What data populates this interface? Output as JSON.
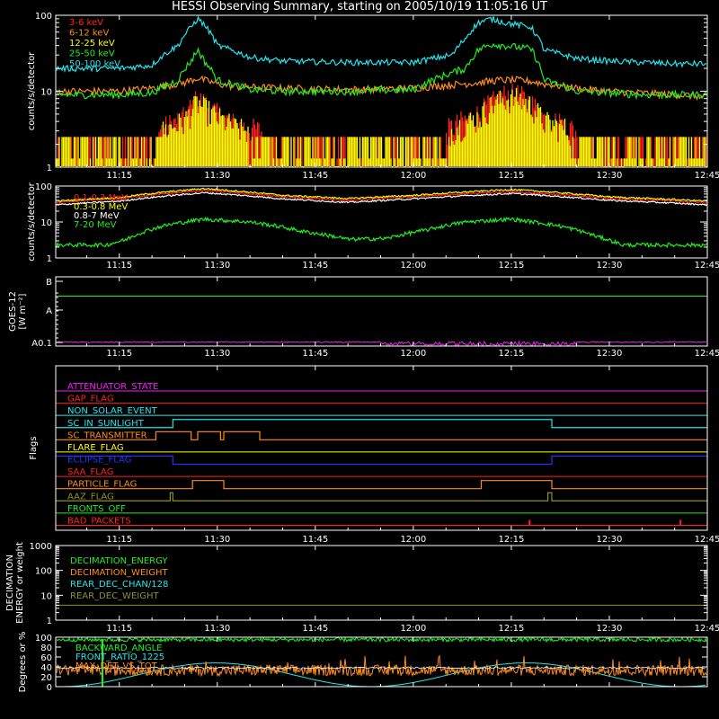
{
  "title": "HESSI Observing Summary, starting on 2005/10/19 11:05:16 UT",
  "colors": {
    "red": "#ff2020",
    "orange": "#ff8c1a",
    "yellow": "#ffff00",
    "green": "#22ee22",
    "cyan": "#22e5ee",
    "magenta": "#ee22ee",
    "blue": "#2233ff",
    "olive": "#8f8f2a",
    "white": "#ffffff",
    "axes": "#ffffff"
  },
  "time_axis": {
    "start_minutes": 665.27,
    "end_minutes": 765,
    "tick_labels": [
      "11:15",
      "11:30",
      "11:45",
      "12:00",
      "12:15",
      "12:30",
      "12:45"
    ],
    "tick_minutes": [
      675,
      690,
      705,
      720,
      735,
      750,
      765
    ]
  },
  "chart_data": [
    {
      "type": "line",
      "panel": "count-rates-low",
      "ylabel": "counts/s/detector",
      "scale": "log",
      "ylim": [
        1,
        100
      ],
      "ytick_labels": [
        "1",
        "10",
        "100"
      ],
      "series": [
        {
          "name": "3-6 keV",
          "color": "#ff2020",
          "x": [
            665.3,
            675,
            680,
            685,
            687,
            688,
            690,
            693,
            700,
            710,
            720,
            725,
            730,
            732,
            734,
            736,
            738,
            740,
            745,
            750,
            755,
            760,
            765
          ],
          "y": [
            2.3,
            2.3,
            2.6,
            4.5,
            8,
            7,
            5,
            3.5,
            2.6,
            2.3,
            2.3,
            3,
            5,
            7,
            9,
            9,
            7,
            4.5,
            3,
            2.3,
            1.8,
            1.5,
            1.5
          ]
        },
        {
          "name": "6-12 keV",
          "color": "#ff8c1a",
          "x": [
            665.3,
            675,
            680,
            685,
            687,
            688,
            690,
            693,
            700,
            710,
            720,
            725,
            730,
            733,
            736,
            738,
            740,
            745,
            750,
            755,
            760,
            765
          ],
          "y": [
            10,
            10,
            11,
            13,
            15,
            14,
            12.5,
            11.5,
            11,
            10.5,
            11,
            12,
            13,
            14,
            14,
            13.5,
            12.5,
            11,
            10,
            9.5,
            9,
            8.5
          ]
        },
        {
          "name": "12-25 keV",
          "color": "#ffff00",
          "x": [
            665.3,
            675,
            680,
            685,
            687,
            688,
            690,
            693,
            700,
            710,
            720,
            725,
            730,
            732,
            734,
            736,
            738,
            740,
            745,
            750,
            755,
            760,
            765
          ],
          "y": [
            2.2,
            2.2,
            2.5,
            4,
            7,
            6,
            4.5,
            3.2,
            2.4,
            2.2,
            2.2,
            2.8,
            4.5,
            6.5,
            8,
            8,
            6.5,
            4,
            2.8,
            2.2,
            2,
            2,
            2
          ]
        },
        {
          "name": "25-50 keV",
          "color": "#22ee22",
          "x": [
            665.3,
            675,
            680,
            684,
            686,
            687,
            688,
            690,
            695,
            700,
            710,
            720,
            728,
            730,
            732,
            734,
            736,
            738,
            740,
            745,
            750,
            755,
            760,
            765
          ],
          "y": [
            9,
            9,
            9.5,
            14,
            25,
            35,
            25,
            14,
            10.5,
            10,
            10,
            10.5,
            20,
            35,
            42,
            40,
            38,
            36,
            14,
            10,
            9.5,
            9,
            9,
            9
          ]
        },
        {
          "name": "50-100 keV",
          "color": "#22e5ee",
          "x": [
            665.3,
            675,
            680,
            684,
            686,
            687,
            688,
            690,
            695,
            700,
            710,
            720,
            726,
            728,
            730,
            732,
            734,
            736,
            738,
            740,
            745,
            750,
            755,
            760,
            765
          ],
          "y": [
            20,
            20,
            22,
            40,
            70,
            90,
            75,
            40,
            28,
            25,
            24,
            24,
            30,
            50,
            80,
            90,
            80,
            75,
            70,
            35,
            27,
            25,
            24,
            23,
            23
          ]
        }
      ]
    },
    {
      "type": "line",
      "panel": "count-rates-high",
      "ylabel": "counts/s/detector",
      "scale": "log",
      "ylim": [
        1,
        100
      ],
      "ytick_labels": [
        "1",
        "10",
        "100"
      ],
      "series": [
        {
          "name": "0.1-0.3 MeV",
          "color": "#ff2020",
          "x": [
            665.3,
            675,
            688,
            700,
            710,
            720,
            735,
            750,
            765
          ],
          "y": [
            35,
            45,
            75,
            50,
            40,
            50,
            70,
            45,
            35
          ]
        },
        {
          "name": "0.3-0.8 MeV",
          "color": "#ffff00",
          "x": [
            665.3,
            675,
            688,
            700,
            710,
            720,
            735,
            750,
            765
          ],
          "y": [
            38,
            48,
            85,
            55,
            45,
            55,
            80,
            50,
            38
          ]
        },
        {
          "name": "0.8-7 MeV",
          "color": "#ffffff",
          "x": [
            665.3,
            675,
            688,
            700,
            710,
            720,
            735,
            750,
            765
          ],
          "y": [
            30,
            38,
            65,
            44,
            35,
            44,
            62,
            40,
            30
          ]
        },
        {
          "name": "7-20 MeV",
          "color": "#22ee22",
          "x": [
            665.3,
            673,
            676,
            682,
            688,
            695,
            703,
            710,
            716,
            722,
            728,
            735,
            742,
            748,
            752,
            757,
            765
          ],
          "y": [
            2.3,
            2.3,
            3.2,
            8,
            12,
            10,
            5.5,
            3.3,
            3.5,
            6,
            10,
            12,
            8,
            4,
            2.3,
            2.3,
            2.3
          ]
        }
      ]
    },
    {
      "type": "line",
      "panel": "goes",
      "ylabel": "GOES-12",
      "ylabel2": "[W m⁻²]",
      "ytick_labels": [
        "A0.1",
        "A",
        "B"
      ],
      "series": [
        {
          "name": "",
          "color": "#22ee22",
          "x": [
            665.3,
            765
          ],
          "y": [
            0.72,
            0.72
          ]
        },
        {
          "name": "",
          "color": "#ee22ee",
          "x": [
            665.3,
            765
          ],
          "y": [
            0.02,
            0.02
          ]
        }
      ]
    },
    {
      "type": "line",
      "panel": "flags",
      "ylabel": "Flags",
      "series": [
        {
          "name": "ATTENUATOR_STATE",
          "color": "#ee22ee",
          "steps": []
        },
        {
          "name": "GAP_FLAG",
          "color": "#ff2020",
          "steps": []
        },
        {
          "name": "NON_SOLAR_EVENT",
          "color": "#22e5ee",
          "steps": []
        },
        {
          "name": "SC_IN_SUNLIGHT",
          "color": "#22e5ee",
          "steps": [
            [
              665.3,
              683.2,
              0
            ],
            [
              683.2,
              741.2,
              1
            ],
            [
              741.2,
              765,
              0
            ]
          ]
        },
        {
          "name": "SC_TRANSMITTER",
          "color": "#ff8c1a",
          "steps": [
            [
              665.3,
              680.6,
              0
            ],
            [
              680.6,
              686,
              1
            ],
            [
              686,
              687,
              0
            ],
            [
              687,
              690.5,
              1
            ],
            [
              690.5,
              691,
              0
            ],
            [
              691,
              696.5,
              1
            ],
            [
              696.5,
              765,
              0
            ]
          ]
        },
        {
          "name": "FLARE_FLAG",
          "color": "#ffff00",
          "steps": []
        },
        {
          "name": "ECLIPSE_FLAG",
          "color": "#2233ff",
          "steps": [
            [
              665.3,
              683.2,
              1
            ],
            [
              683.2,
              741.2,
              0
            ],
            [
              741.2,
              765,
              1
            ]
          ]
        },
        {
          "name": "SAA_FLAG",
          "color": "#ff2020",
          "steps": []
        },
        {
          "name": "PARTICLE_FLAG",
          "color": "#ff8c1a",
          "steps": [
            [
              665.3,
              686.2,
              0
            ],
            [
              686.2,
              691,
              1
            ],
            [
              691,
              730.4,
              0
            ],
            [
              730.4,
              741.2,
              1
            ],
            [
              741.2,
              765,
              0
            ]
          ]
        },
        {
          "name": "AAZ_FLAG",
          "color": "#8f8f2a",
          "steps": [
            [
              665.3,
              682.8,
              0
            ],
            [
              682.8,
              683.2,
              1
            ],
            [
              683.2,
              740.6,
              0
            ],
            [
              740.6,
              741.2,
              1
            ],
            [
              741.2,
              765,
              0
            ]
          ]
        },
        {
          "name": "FRONTS_OFF",
          "color": "#22ee22",
          "steps": []
        },
        {
          "name": "BAD_PACKETS",
          "color": "#ff2020",
          "steps": [
            [
              665.3,
              765,
              0
            ]
          ],
          "spikes": [
            737.8,
            760.9
          ]
        }
      ]
    },
    {
      "type": "line",
      "panel": "decimation",
      "ylabel": "DECIMATION",
      "ylabel2": "ENERGY or weight",
      "scale": "log",
      "ylim": [
        1,
        1000
      ],
      "ytick_labels": [
        "1",
        "10",
        "100",
        "1000"
      ],
      "series": [
        {
          "name": "DECIMATION_ENERGY",
          "color": "#22ee22",
          "x": [
            665.3,
            765
          ],
          "y": [
            0,
            0
          ]
        },
        {
          "name": "DECIMATION_WEIGHT",
          "color": "#ff8c1a",
          "x": [
            665.3,
            765
          ],
          "y": [
            0,
            0
          ]
        },
        {
          "name": "REAR_DEC_CHAN/128",
          "color": "#22e5ee",
          "x": [
            665.3,
            765
          ],
          "y": [
            0,
            0
          ]
        },
        {
          "name": "REAR_DEC_WEIGHT",
          "color": "#8f8f2a",
          "x": [
            665.3,
            765
          ],
          "y": [
            4,
            4
          ]
        }
      ]
    },
    {
      "type": "line",
      "panel": "pointing",
      "ylabel": "Degrees or %",
      "ylim": [
        0,
        100
      ],
      "ytick_labels": [
        "0",
        "20",
        "40",
        "60",
        "80",
        "100"
      ],
      "series": [
        {
          "name": "BACKWARD_ANGLE",
          "color": "#22ee22",
          "x": [
            665.3,
            765
          ],
          "y": [
            95,
            95
          ]
        },
        {
          "name": "FRONT_RATIO_1225",
          "color": "#22e5ee",
          "x": [
            665.3,
            765
          ],
          "y": [
            0,
            0
          ]
        },
        {
          "name": "MAX_DET_VS_TOT",
          "color": "#ff8c1a",
          "x": [
            665.3,
            765
          ],
          "y": [
            33,
            33
          ]
        }
      ]
    }
  ]
}
